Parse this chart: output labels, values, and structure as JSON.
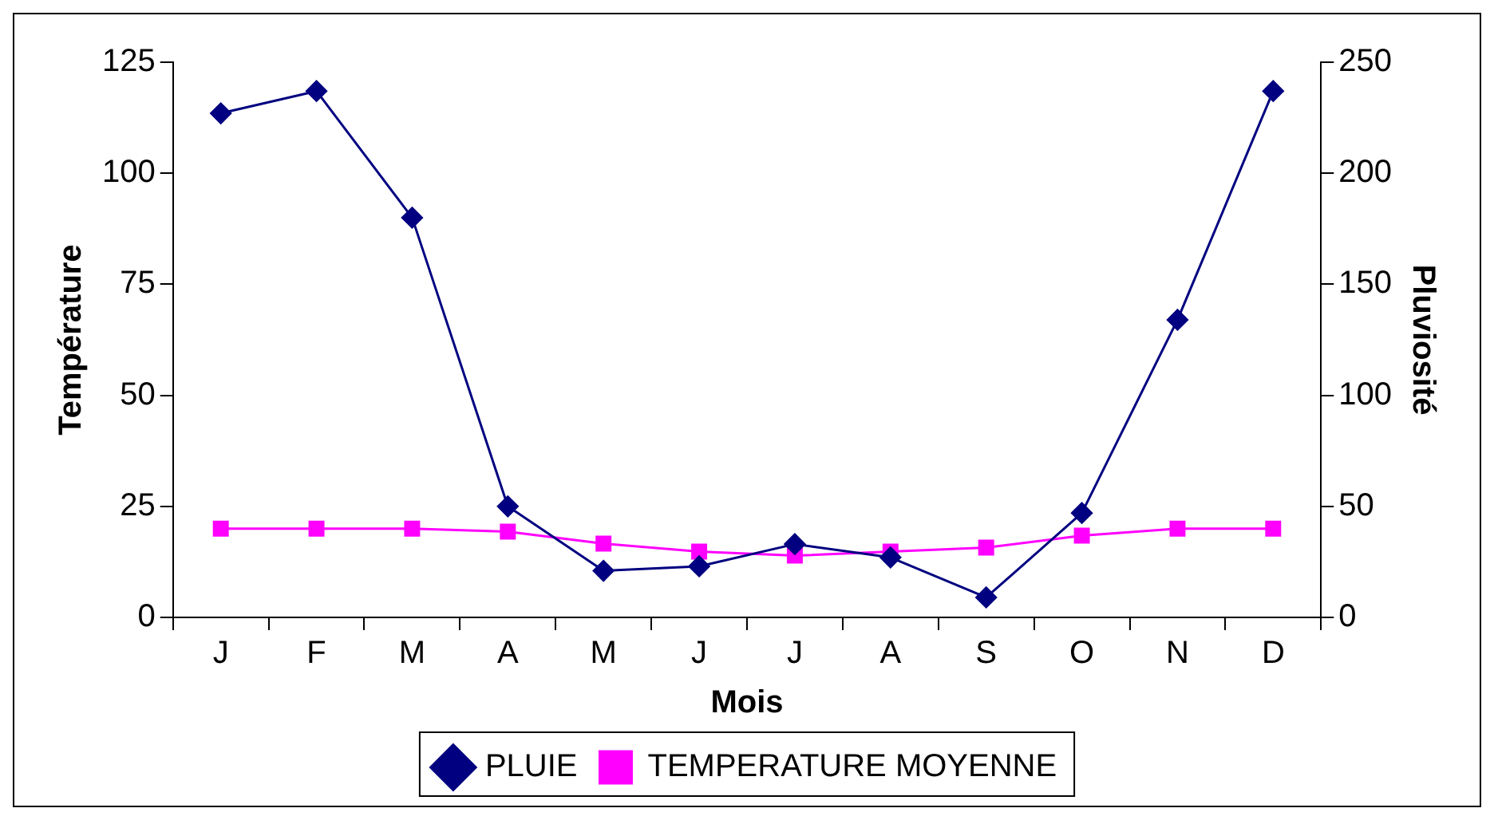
{
  "chart_data": {
    "type": "line",
    "xlabel": "Mois",
    "ylabel": "Température",
    "y2label": "Pluviosité",
    "categories": [
      "J",
      "F",
      "M",
      "A",
      "M",
      "J",
      "J",
      "A",
      "S",
      "O",
      "N",
      "D"
    ],
    "series": [
      {
        "name": "TEMPERATURE MOYENNE",
        "color": "#ff00ff",
        "marker": "square",
        "values": [
          20,
          20,
          20,
          19.3,
          16.6,
          14.8,
          13.9,
          14.8,
          15.7,
          18.4,
          20,
          20
        ]
      },
      {
        "name": "PLUIE",
        "color": "#000080",
        "marker": "diamond",
        "axis": "y2",
        "values": [
          227,
          237,
          180,
          50,
          21,
          23,
          33,
          27,
          9,
          47,
          134,
          237
        ]
      }
    ],
    "ylim": [
      0,
      125
    ],
    "yticks": [
      0,
      25,
      50,
      75,
      100,
      125
    ],
    "y2lim": [
      0,
      250
    ],
    "y2ticks": [
      0,
      50,
      100,
      150,
      200,
      250
    ],
    "grid": false,
    "legend": "bottom",
    "line_style": "solid"
  }
}
